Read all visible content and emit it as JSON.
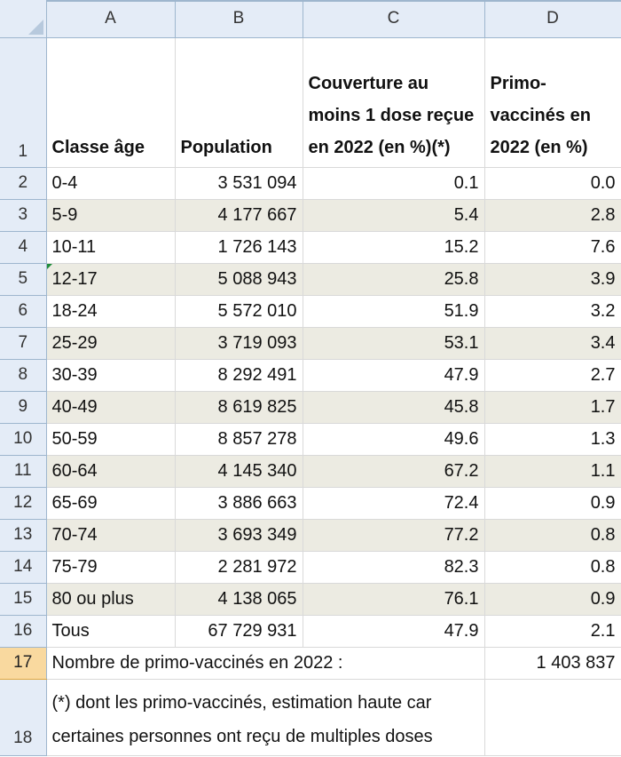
{
  "columns": [
    "A",
    "B",
    "C",
    "D"
  ],
  "header_row": {
    "num": "1",
    "a": "Classe âge",
    "b": "Population",
    "c": "Couverture au moins 1 dose reçue en 2022 (en %)(*)",
    "d": "Primo-vaccinés en 2022 (en %)"
  },
  "rows": [
    {
      "num": "2",
      "age": "0-4",
      "pop": "3 531 094",
      "cov": "0.1",
      "primo": "0.0"
    },
    {
      "num": "3",
      "age": "5-9",
      "pop": "4 177 667",
      "cov": "5.4",
      "primo": "2.8"
    },
    {
      "num": "4",
      "age": "10-11",
      "pop": "1 726 143",
      "cov": "15.2",
      "primo": "7.6"
    },
    {
      "num": "5",
      "age": "12-17",
      "pop": "5 088 943",
      "cov": "25.8",
      "primo": "3.9"
    },
    {
      "num": "6",
      "age": "18-24",
      "pop": "5 572 010",
      "cov": "51.9",
      "primo": "3.2"
    },
    {
      "num": "7",
      "age": "25-29",
      "pop": "3 719 093",
      "cov": "53.1",
      "primo": "3.4"
    },
    {
      "num": "8",
      "age": "30-39",
      "pop": "8 292 491",
      "cov": "47.9",
      "primo": "2.7"
    },
    {
      "num": "9",
      "age": "40-49",
      "pop": "8 619 825",
      "cov": "45.8",
      "primo": "1.7"
    },
    {
      "num": "10",
      "age": "50-59",
      "pop": "8 857 278",
      "cov": "49.6",
      "primo": "1.3"
    },
    {
      "num": "11",
      "age": "60-64",
      "pop": "4 145 340",
      "cov": "67.2",
      "primo": "1.1"
    },
    {
      "num": "12",
      "age": "65-69",
      "pop": "3 886 663",
      "cov": "72.4",
      "primo": "0.9"
    },
    {
      "num": "13",
      "age": "70-74",
      "pop": "3 693 349",
      "cov": "77.2",
      "primo": "0.8"
    },
    {
      "num": "14",
      "age": "75-79",
      "pop": "2 281 972",
      "cov": "82.3",
      "primo": "0.8"
    },
    {
      "num": "15",
      "age": "80 ou plus",
      "pop": "4 138 065",
      "cov": "76.1",
      "primo": "0.9"
    },
    {
      "num": "16",
      "age": "Tous",
      "pop": "67 729 931",
      "cov": "47.9",
      "primo": "2.1"
    }
  ],
  "row17": {
    "num": "17",
    "label": "Nombre de primo-vaccinés en 2022 :",
    "value": "1 403 837"
  },
  "row18": {
    "num": "18",
    "note": "(*) dont les primo-vaccinés, estimation haute car certaines personnes ont reçu de multiples doses"
  },
  "colors": {
    "band": "#ecebe2",
    "header_bg": "#e4ecf7",
    "selected_row_header": "#f9d99f"
  }
}
